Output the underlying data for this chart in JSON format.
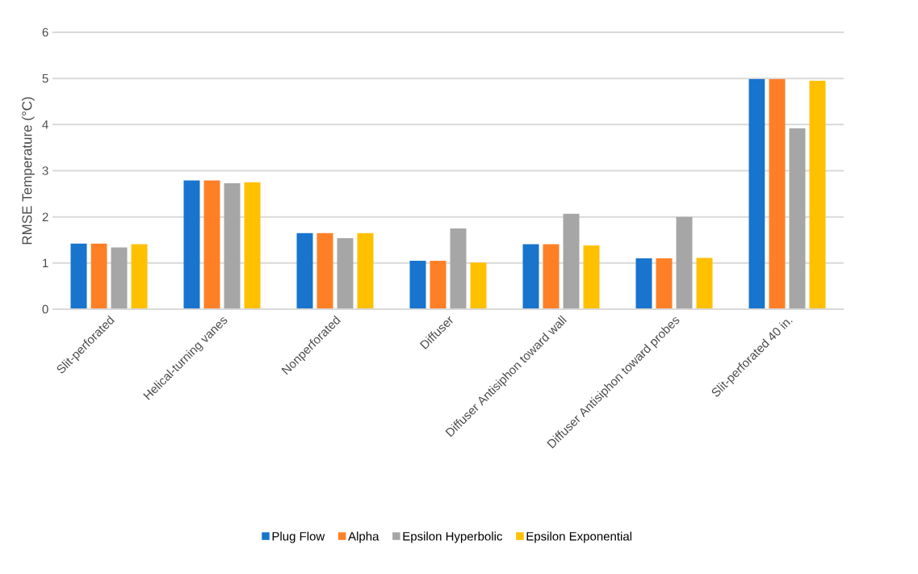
{
  "chart_data": {
    "type": "bar",
    "ylabel": "RMSE Temperature (°C)",
    "categories": [
      "Slit-perforated",
      "Helical-turning vanes",
      "Nonperforated",
      "Diffuser",
      "Diffuser Antisiphon toward wall",
      "Diffuser Antisiphon toward probes",
      "Slit-perforated 40 in."
    ],
    "series": [
      {
        "name": "Plug Flow",
        "color": "#1874cd",
        "values": [
          1.42,
          2.79,
          1.65,
          1.05,
          1.41,
          1.1,
          4.99
        ]
      },
      {
        "name": "Alpha",
        "color": "#ff7f27",
        "values": [
          1.42,
          2.79,
          1.65,
          1.05,
          1.41,
          1.1,
          4.99
        ]
      },
      {
        "name": "Epsilon Hyperbolic",
        "color": "#a6a6a6",
        "values": [
          1.34,
          2.73,
          1.54,
          1.75,
          2.07,
          2.0,
          3.92
        ]
      },
      {
        "name": "Epsilon Exponential",
        "color": "#ffc000",
        "values": [
          1.41,
          2.75,
          1.65,
          1.01,
          1.38,
          1.11,
          4.95
        ]
      }
    ],
    "ylim": [
      0,
      6
    ],
    "yticks": [
      0,
      1,
      2,
      3,
      4,
      5,
      6
    ],
    "grid": "y",
    "legend": "bottom"
  }
}
